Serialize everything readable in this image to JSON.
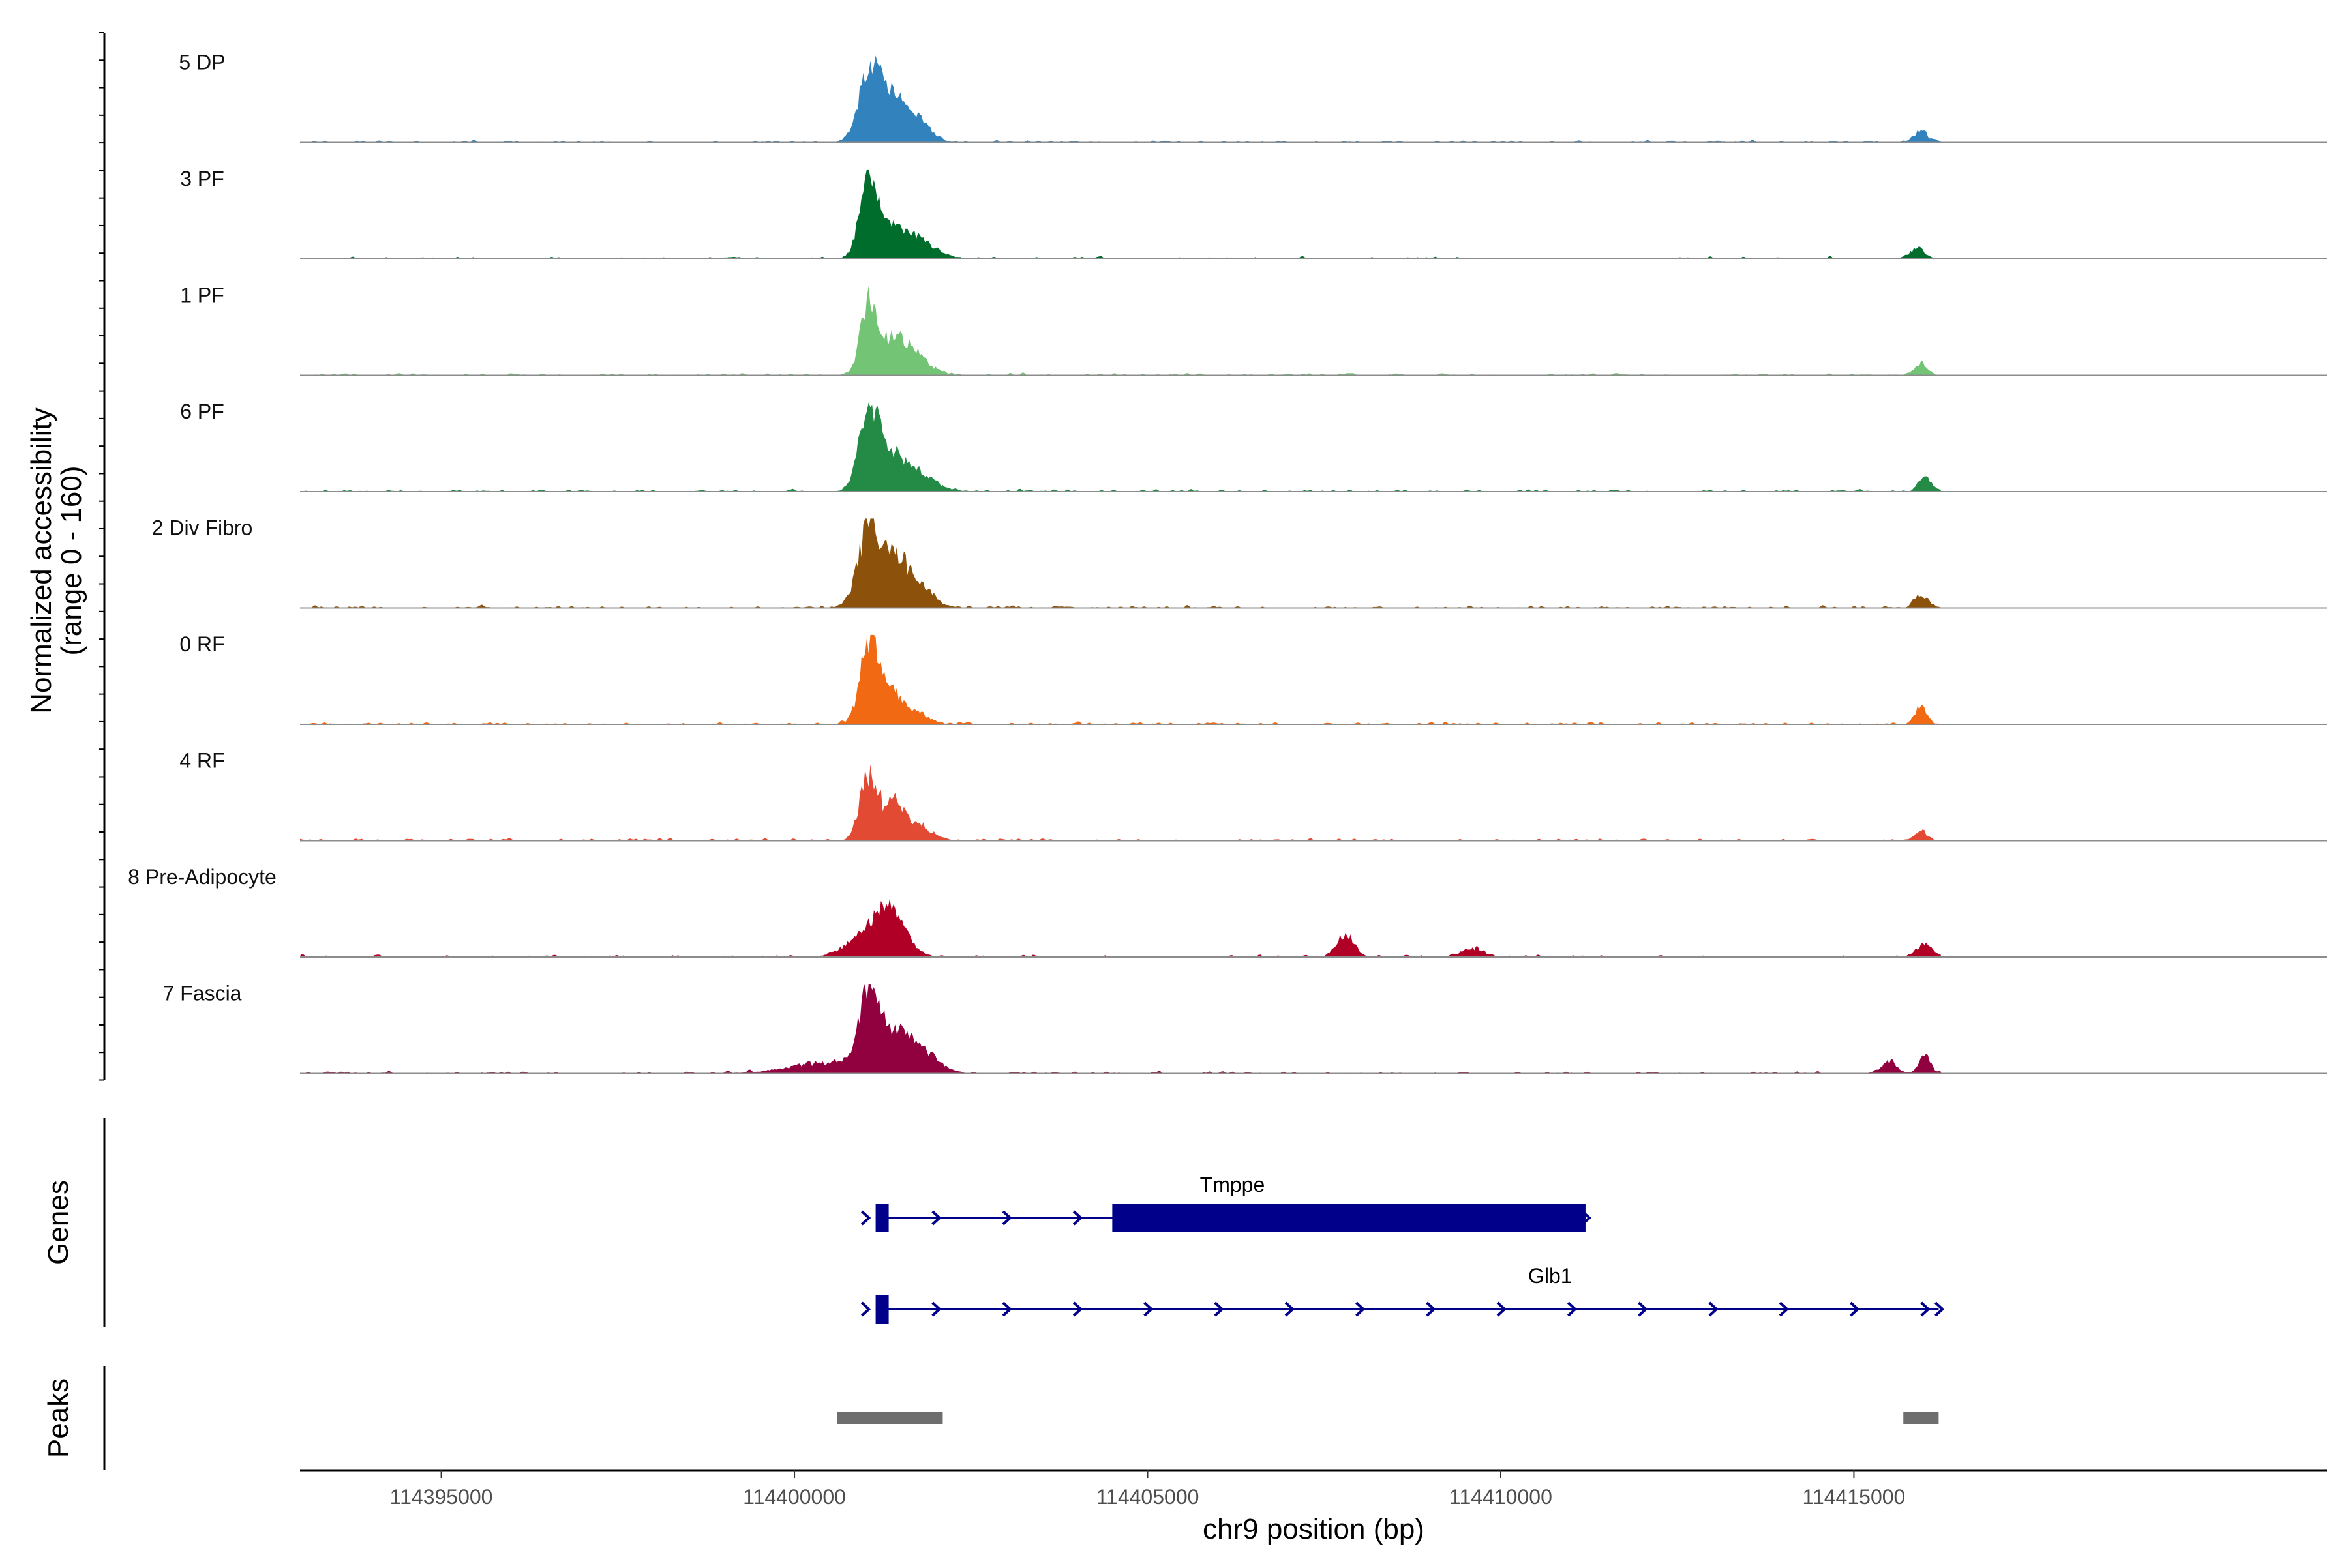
{
  "chart_data": {
    "type": "area",
    "title": "",
    "ylabel": "Normalized accessibility\n(range 0 - 160)",
    "xlabel": "chr9 position (bp)",
    "ylim": [
      0,
      160
    ],
    "xlim": [
      114393000,
      114421700
    ],
    "x_ticks": [
      114395000,
      114400000,
      114405000,
      114410000,
      114415000
    ],
    "x_tick_labels": [
      "114395000",
      "114400000",
      "114405000",
      "114410000",
      "114415000"
    ],
    "tracks": [
      {
        "name": "5 DP",
        "color": "#3182bd",
        "peaks": [
          [
            114401050,
            104,
            150
          ],
          [
            114401300,
            70,
            200
          ],
          [
            114401600,
            38,
            180
          ],
          [
            114401850,
            18,
            150
          ],
          [
            114415950,
            20,
            100
          ]
        ]
      },
      {
        "name": "3 PF",
        "color": "#006d2c",
        "peaks": [
          [
            114401050,
            125,
            130
          ],
          [
            114401350,
            42,
            220
          ],
          [
            114401750,
            30,
            250
          ],
          [
            114415900,
            18,
            100
          ]
        ]
      },
      {
        "name": "1 PF",
        "color": "#74c476",
        "peaks": [
          [
            114401050,
            123,
            110
          ],
          [
            114401400,
            62,
            220
          ],
          [
            114401750,
            22,
            200
          ],
          [
            114415950,
            22,
            90
          ]
        ]
      },
      {
        "name": "6 PF",
        "color": "#238b45",
        "peaks": [
          [
            114401050,
            127,
            140
          ],
          [
            114401350,
            60,
            220
          ],
          [
            114401750,
            28,
            250
          ],
          [
            114416000,
            28,
            80
          ]
        ]
      },
      {
        "name": "2 Div Fibro",
        "color": "#8c510a",
        "peaks": [
          [
            114401050,
            142,
            150
          ],
          [
            114401450,
            88,
            200
          ],
          [
            114401850,
            24,
            180
          ],
          [
            114415950,
            24,
            90
          ]
        ]
      },
      {
        "name": "0 RF",
        "color": "#f16913",
        "peaks": [
          [
            114401050,
            126,
            120
          ],
          [
            114401300,
            68,
            200
          ],
          [
            114401750,
            18,
            160
          ],
          [
            114415950,
            34,
            80
          ]
        ]
      },
      {
        "name": "4 RF",
        "color": "#e34a33",
        "peaks": [
          [
            114401050,
            118,
            120
          ],
          [
            114401400,
            62,
            150
          ],
          [
            114401750,
            26,
            200
          ],
          [
            114415950,
            20,
            80
          ]
        ]
      },
      {
        "name": "8 Pre-Adipocyte",
        "color": "#b10026",
        "peaks": [
          [
            114401150,
            60,
            300
          ],
          [
            114401400,
            46,
            180
          ],
          [
            114407800,
            40,
            120
          ],
          [
            114409600,
            16,
            150
          ],
          [
            114416000,
            24,
            120
          ]
        ]
      },
      {
        "name": "7 Fascia",
        "color": "#91003f",
        "peaks": [
          [
            114401050,
            132,
            130
          ],
          [
            114401400,
            65,
            220
          ],
          [
            114401800,
            36,
            220
          ],
          [
            114400600,
            20,
            600
          ],
          [
            114415500,
            22,
            100
          ],
          [
            114416000,
            35,
            80
          ]
        ]
      }
    ],
    "genes": [
      {
        "name": "Tmppe",
        "start": 114401150,
        "end": 114411200,
        "strand": "+",
        "thick_blocks": [
          [
            114401150,
            114401300
          ],
          [
            114404500,
            114411200
          ]
        ]
      },
      {
        "name": "Glb1",
        "start": 114401150,
        "end": 114416200,
        "strand": "+",
        "thick_blocks": [
          [
            114401150,
            114401300
          ]
        ]
      }
    ],
    "peaks_track": [
      [
        114400600,
        114402100
      ],
      [
        114415700,
        114416200
      ]
    ],
    "panel_labels": [
      "Genes",
      "Peaks"
    ]
  }
}
